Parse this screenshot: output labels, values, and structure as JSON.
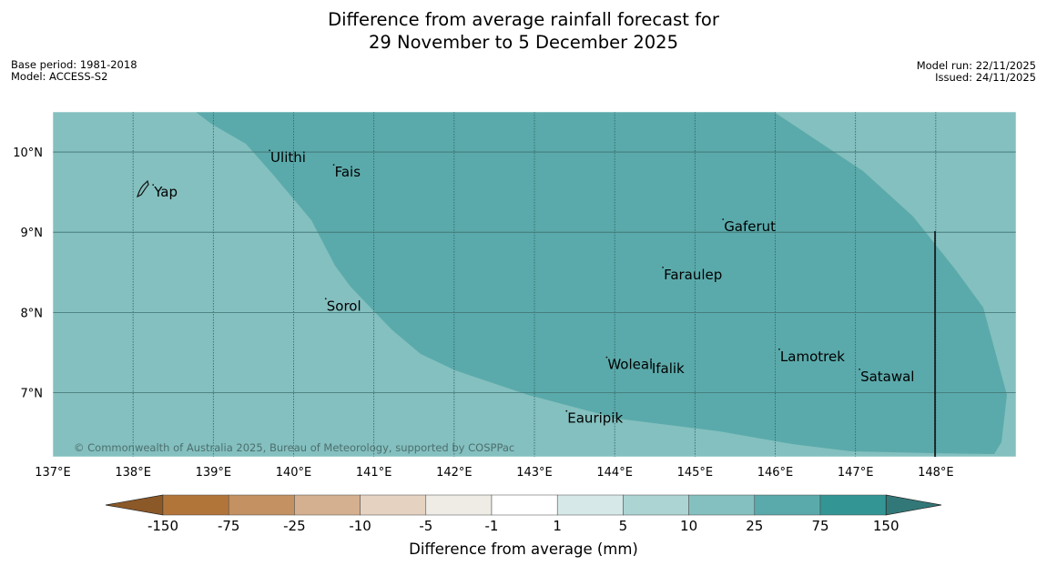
{
  "title": {
    "line1": "Difference from average rainfall forecast for",
    "line2": "29 November to 5 December 2025"
  },
  "meta_left": {
    "base_period": "Base period: 1981-2018",
    "model": "Model: ACCESS-S2"
  },
  "meta_right": {
    "model_run": "Model run: 22/11/2025",
    "issued": "Issued: 24/11/2025"
  },
  "map": {
    "lon_range": [
      137,
      149
    ],
    "lat_range": [
      6.2,
      10.5
    ],
    "lon_ticks": [
      "137°E",
      "138°E",
      "139°E",
      "140°E",
      "141°E",
      "142°E",
      "143°E",
      "144°E",
      "145°E",
      "146°E",
      "147°E",
      "148°E"
    ],
    "lat_ticks": [
      "10°N",
      "9°N",
      "8°N",
      "7°N"
    ],
    "copyright": "© Commonwealth of Australia 2025, Bureau of Meteorology, supported by COSPPac",
    "places": [
      {
        "name": "Yap",
        "lon": 138.25,
        "lat": 9.5
      },
      {
        "name": "Ulithi",
        "lon": 139.7,
        "lat": 9.93
      },
      {
        "name": "Fais",
        "lon": 140.5,
        "lat": 9.75
      },
      {
        "name": "Gaferut",
        "lon": 145.35,
        "lat": 9.07
      },
      {
        "name": "Faraulep",
        "lon": 144.6,
        "lat": 8.47
      },
      {
        "name": "Sorol",
        "lon": 140.4,
        "lat": 8.08
      },
      {
        "name": "Lamotrek",
        "lon": 146.05,
        "lat": 7.45
      },
      {
        "name": "Woleai",
        "lon": 143.9,
        "lat": 7.35
      },
      {
        "name": "Ifalik",
        "lon": 144.45,
        "lat": 7.3
      },
      {
        "name": "Satawal",
        "lon": 147.05,
        "lat": 7.2
      },
      {
        "name": "Eauripik",
        "lon": 143.4,
        "lat": 6.68
      }
    ],
    "fill_colors": {
      "c10": "#84c0bf",
      "c25": "#5baaab"
    }
  },
  "colorbar": {
    "ticks": [
      "-150",
      "-75",
      "-25",
      "-10",
      "-5",
      "-1",
      "1",
      "5",
      "10",
      "25",
      "75",
      "150"
    ],
    "colors": [
      "#b27539",
      "#c39162",
      "#d5b090",
      "#e5d2c1",
      "#efece6",
      "#ffffff",
      "#d6e9e8",
      "#acd4d3",
      "#84c0bf",
      "#5baaab",
      "#339695"
    ],
    "end_low": "#8b5828",
    "end_high": "#337878",
    "label": "Difference from average (mm)"
  }
}
